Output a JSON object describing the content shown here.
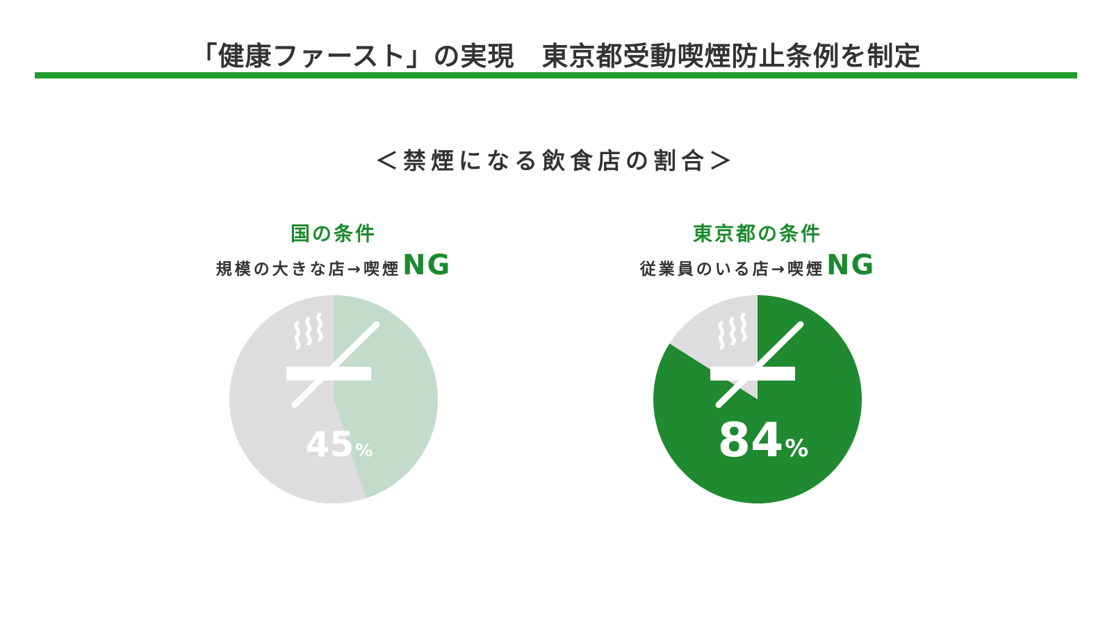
{
  "page": {
    "title": "「健康ファースト」の実現　東京都受動喫煙防止条例を制定",
    "chart_heading": "＜禁煙になる飲食店の割合＞",
    "accent_color": "#1f9c2e"
  },
  "panels": [
    {
      "condition_title": "国の条件",
      "condition_text": "規模の大きな店→喫煙",
      "condition_ng": "NG",
      "percent_label": "45",
      "percent_sign": "%",
      "icon": "no-smoking-icon"
    },
    {
      "condition_title": "東京都の条件",
      "condition_text": "従業員のいる店→喫煙",
      "condition_ng": "NG",
      "percent_label": "84",
      "percent_sign": "%",
      "icon": "no-smoking-icon"
    }
  ],
  "chart_data": [
    {
      "type": "pie",
      "title": "国の条件",
      "values": [
        45,
        55
      ],
      "colors": [
        "#c2dbcb",
        "#dedcdf"
      ]
    },
    {
      "type": "pie",
      "title": "東京都の条件",
      "values": [
        84,
        16
      ],
      "colors": [
        "#1f8a2f",
        "#dedcdf"
      ]
    }
  ]
}
